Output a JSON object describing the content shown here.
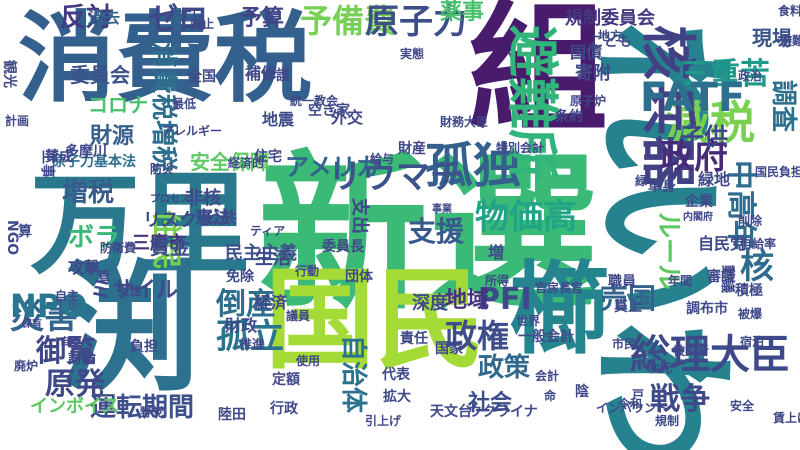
{
  "words": [
    {
      "text": "新選",
      "color": "#3aba76"
    },
    {
      "text": "消費税",
      "color": "#34608d"
    },
    {
      "text": "組",
      "color": "#481b6d"
    },
    {
      "text": "れいわ",
      "color": "#26828e"
    },
    {
      "text": "万里",
      "color": "#2a788e"
    },
    {
      "text": "渕",
      "color": "#2c718e"
    },
    {
      "text": "国民",
      "color": "#a5db36"
    },
    {
      "text": "櫛",
      "color": "#25858e"
    },
    {
      "text": "孤独",
      "color": "#35608d"
    },
    {
      "text": "減税",
      "color": "#7ad151"
    },
    {
      "text": "核兵器",
      "color": "#424186"
    },
    {
      "text": "避難所",
      "color": "#31b57b"
    },
    {
      "text": "予備費",
      "color": "#75d054"
    },
    {
      "text": "原子力",
      "color": "#3d4e8a"
    },
    {
      "text": "反対",
      "color": "#443a83"
    },
    {
      "text": "ゼロ",
      "color": "#3f4788"
    },
    {
      "text": "予算",
      "color": "#414487"
    },
    {
      "text": "過去",
      "color": "#33628d"
    },
    {
      "text": "薬事",
      "color": "#4ac16d"
    },
    {
      "text": "規制委員会",
      "color": "#453781"
    },
    {
      "text": "三重苦",
      "color": "#1f9a8a"
    },
    {
      "text": "FATF",
      "color": "#2d708e"
    },
    {
      "text": "政府",
      "color": "#472a7a"
    },
    {
      "text": "リウマチ",
      "color": "#3b528b"
    },
    {
      "text": "アメリカ",
      "color": "#33638d"
    },
    {
      "text": "消費税増税",
      "color": "#2e6e8e"
    },
    {
      "text": "財源",
      "color": "#355f8d"
    },
    {
      "text": "増税",
      "color": "#365c8d"
    },
    {
      "text": "支援",
      "color": "#375a8c"
    },
    {
      "text": "総理大臣",
      "color": "#3e4989"
    },
    {
      "text": "戦争",
      "color": "#3e4a89"
    },
    {
      "text": "社会",
      "color": "#3d4e8a"
    },
    {
      "text": "政策",
      "color": "#31688e"
    },
    {
      "text": "政権",
      "color": "#3e4c8a"
    },
    {
      "text": "自治体",
      "color": "#2c728e"
    },
    {
      "text": "原発",
      "color": "#3f4889"
    },
    {
      "text": "御覧",
      "color": "#404688"
    },
    {
      "text": "災害",
      "color": "#32648e"
    },
    {
      "text": "NPO",
      "color": "#2a768e"
    },
    {
      "text": "運転期間",
      "color": "#3c508b"
    },
    {
      "text": "孤立",
      "color": "#2b748e"
    },
    {
      "text": "倒産",
      "color": "#2e6f8e"
    },
    {
      "text": "PFI",
      "color": "#3f4889"
    },
    {
      "text": "物価高",
      "color": "#20a386"
    },
    {
      "text": "売国",
      "color": "#33638d"
    },
    {
      "text": "核",
      "color": "#2f6b8e"
    },
    {
      "text": "住民",
      "color": "#7ad151"
    },
    {
      "text": "ボラ",
      "color": "#38b977"
    },
    {
      "text": "子供",
      "color": "#3f4788"
    },
    {
      "text": "中高年",
      "color": "#2f6c8e"
    },
    {
      "text": "調査",
      "color": "#2d708e"
    },
    {
      "text": "現場",
      "color": "#3b528b"
    },
    {
      "text": "寄附",
      "color": "#3e4a89"
    },
    {
      "text": "安全保障",
      "color": "#5ec962"
    },
    {
      "text": "原子力基本法",
      "color": "#2e6e8e"
    },
    {
      "text": "コロナ",
      "color": "#4ac16d"
    },
    {
      "text": "委員会",
      "color": "#3b528b"
    },
    {
      "text": "地域",
      "color": "#46327e"
    },
    {
      "text": "深度",
      "color": "#3e4a89"
    },
    {
      "text": "ルール",
      "color": "#5ec962"
    },
    {
      "text": "インボイス",
      "color": "#5ec962"
    },
    {
      "text": "攻撃",
      "color": "#3f4889"
    },
    {
      "text": "ミサイル",
      "color": "#3f4889"
    },
    {
      "text": "三鷹市",
      "color": "#46337e"
    },
    {
      "text": "民主主義",
      "color": "#3b528b"
    },
    {
      "text": "賃金",
      "color": "#3c508b"
    },
    {
      "text": "憲法",
      "color": "#3e4989"
    },
    {
      "text": "リスク",
      "color": "#3f4889"
    },
    {
      "text": "公共",
      "color": "#3f4889"
    },
    {
      "text": "非核",
      "color": "#3f4889"
    },
    {
      "text": "委員長",
      "color": "#3f4889"
    },
    {
      "text": "支出",
      "color": "#3f4889"
    },
    {
      "text": "補修",
      "color": "#3f4889"
    },
    {
      "text": "国債",
      "color": "#3e4a89"
    },
    {
      "text": "地震",
      "color": "#3e4a89"
    },
    {
      "text": "住宅",
      "color": "#3f4889"
    },
    {
      "text": "条約",
      "color": "#3f4889"
    },
    {
      "text": "外交",
      "color": "#3f4889"
    },
    {
      "text": "経済",
      "color": "#3f4889"
    },
    {
      "text": "財政",
      "color": "#3f4889"
    },
    {
      "text": "生活",
      "color": "#3f4889"
    },
    {
      "text": "免除",
      "color": "#3f4889"
    },
    {
      "text": "団体",
      "color": "#3f4889"
    },
    {
      "text": "所得",
      "color": "#3f4889"
    },
    {
      "text": "官房長官",
      "color": "#3f4889"
    },
    {
      "text": "職員",
      "color": "#3f4889"
    },
    {
      "text": "真上",
      "color": "#3f4889"
    },
    {
      "text": "市民",
      "color": "#3f4889"
    },
    {
      "text": "積極",
      "color": "#3f4889"
    },
    {
      "text": "調布市",
      "color": "#3f4889"
    },
    {
      "text": "一般会計",
      "color": "#3f4889"
    },
    {
      "text": "代表",
      "color": "#3f4889"
    },
    {
      "text": "国家",
      "color": "#3f4889"
    },
    {
      "text": "責任",
      "color": "#3f4889"
    },
    {
      "text": "行政",
      "color": "#3f4889"
    },
    {
      "text": "引上げ",
      "color": "#3f4889"
    },
    {
      "text": "天文台",
      "color": "#3f4889"
    },
    {
      "text": "ウクライナ",
      "color": "#3f4889"
    },
    {
      "text": "インバウンド",
      "color": "#3f4889"
    },
    {
      "text": "令和",
      "color": "#3f4889"
    },
    {
      "text": "規制",
      "color": "#3f4889"
    },
    {
      "text": "安全",
      "color": "#3f4889"
    },
    {
      "text": "賃上げ",
      "color": "#3f4889"
    },
    {
      "text": "陸田",
      "color": "#3f4889"
    },
    {
      "text": "拡大",
      "color": "#3f4889"
    },
    {
      "text": "定額",
      "color": "#3f4889"
    },
    {
      "text": "負担",
      "color": "#3f4889"
    },
    {
      "text": "討論",
      "color": "#3f4889"
    },
    {
      "text": "女性",
      "color": "#3f4889"
    },
    {
      "text": "自民党",
      "color": "#3f4889"
    },
    {
      "text": "年間",
      "color": "#3f4889"
    },
    {
      "text": "削除",
      "color": "#3f4889"
    },
    {
      "text": "宿泊",
      "color": "#3f4889"
    },
    {
      "text": "被爆",
      "color": "#3f4889"
    },
    {
      "text": "被災者",
      "color": "#3f4889"
    },
    {
      "text": "次元",
      "color": "#3f4889"
    },
    {
      "text": "世界",
      "color": "#3f4889"
    },
    {
      "text": "陰",
      "color": "#3f4889"
    },
    {
      "text": "使用",
      "color": "#3f4889"
    },
    {
      "text": "議員",
      "color": "#3f4889"
    },
    {
      "text": "推進",
      "color": "#3f4889"
    },
    {
      "text": "自助",
      "color": "#3f4889"
    },
    {
      "text": "廃炉",
      "color": "#3f4889"
    },
    {
      "text": "野党",
      "color": "#3f4889"
    },
    {
      "text": "観光",
      "color": "#3f4889"
    },
    {
      "text": "賛成",
      "color": "#3f4889"
    },
    {
      "text": "工事",
      "color": "#3f4889"
    },
    {
      "text": "多摩川",
      "color": "#3f4889"
    },
    {
      "text": "算",
      "color": "#3f4889"
    },
    {
      "text": "テロ",
      "color": "#3f4889"
    },
    {
      "text": "廃止",
      "color": "#3f4889"
    },
    {
      "text": "実態",
      "color": "#3f4889"
    },
    {
      "text": "こども",
      "color": "#3f4889"
    },
    {
      "text": "介護",
      "color": "#3f4889"
    },
    {
      "text": "空き家",
      "color": "#3f4889"
    },
    {
      "text": "経済的",
      "color": "#3f4889"
    },
    {
      "text": "財務大臣",
      "color": "#3f4889"
    },
    {
      "text": "給与",
      "color": "#3f4889"
    },
    {
      "text": "財産",
      "color": "#3f4889"
    },
    {
      "text": "特別会計",
      "color": "#3f4889"
    },
    {
      "text": "単身",
      "color": "#3f4889"
    },
    {
      "text": "緑地",
      "color": "#3f4889"
    },
    {
      "text": "国民負担",
      "color": "#3f4889"
    },
    {
      "text": "食料",
      "color": "#3f4889"
    },
    {
      "text": "避難",
      "color": "#3f4889"
    },
    {
      "text": "政治",
      "color": "#3f4889"
    },
    {
      "text": "全国",
      "color": "#3f4889"
    },
    {
      "text": "統一教会",
      "color": "#3f4889"
    },
    {
      "text": "最低",
      "color": "#3f4889"
    },
    {
      "text": "アレルギー",
      "color": "#3f4889"
    },
    {
      "text": "防災",
      "color": "#3f4889"
    },
    {
      "text": "防衛費",
      "color": "#3f4889"
    },
    {
      "text": "行動",
      "color": "#3f4889"
    },
    {
      "text": "ティア",
      "color": "#3f4889"
    },
    {
      "text": "NGO",
      "color": "#3f4889"
    },
    {
      "text": "自主",
      "color": "#3f4889"
    },
    {
      "text": "保有",
      "color": "#3f4889"
    },
    {
      "text": "事業",
      "color": "#3f4889"
    },
    {
      "text": "プロセス",
      "color": "#3f4889"
    },
    {
      "text": "自給率",
      "color": "#3f4889"
    },
    {
      "text": "企業",
      "color": "#3f4889"
    },
    {
      "text": "緑",
      "color": "#3f4889"
    },
    {
      "text": "内閣府",
      "color": "#3f4889"
    },
    {
      "text": "原子炉",
      "color": "#3f4889"
    },
    {
      "text": "会計",
      "color": "#3f4889"
    },
    {
      "text": "命",
      "color": "#3f4889"
    },
    {
      "text": "戸",
      "color": "#3f4889"
    },
    {
      "text": "増",
      "color": "#3f4889"
    },
    {
      "text": "審議",
      "color": "#3f4889"
    },
    {
      "text": "動議",
      "color": "#3f4889"
    },
    {
      "text": "計画",
      "color": "#3f4889"
    },
    {
      "text": "地方",
      "color": "#3f4889"
    },
    {
      "text": "管",
      "color": "#3f4889"
    }
  ]
}
